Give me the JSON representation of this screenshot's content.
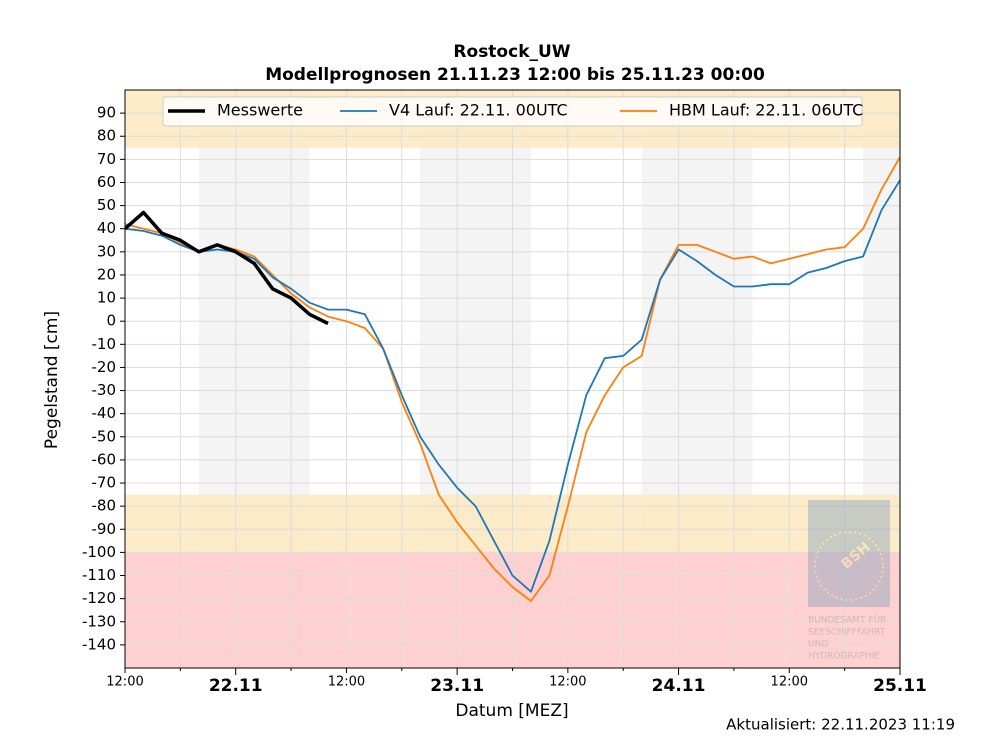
{
  "chart_data": {
    "type": "line",
    "title": "Rostock_UW",
    "subtitle": "Modellprognosen 21.11.23 12:00 bis 25.11.23 00:00",
    "x_label": "Datum [MEZ]",
    "y_label": "Pegelstand [cm]",
    "updated": "Aktualisiert: 22.11.2023 11:19",
    "legend": "upper center",
    "grid": true,
    "x": [
      "21.11 12:00",
      "21.11 14:00",
      "21.11 16:00",
      "21.11 18:00",
      "21.11 20:00",
      "21.11 22:00",
      "22.11 00:00",
      "22.11 02:00",
      "22.11 04:00",
      "22.11 06:00",
      "22.11 08:00",
      "22.11 10:00",
      "22.11 12:00",
      "22.11 14:00",
      "22.11 16:00",
      "22.11 18:00",
      "22.11 20:00",
      "22.11 22:00",
      "23.11 00:00",
      "23.11 02:00",
      "23.11 04:00",
      "23.11 06:00",
      "23.11 08:00",
      "23.11 10:00",
      "23.11 12:00",
      "23.11 14:00",
      "23.11 16:00",
      "23.11 18:00",
      "23.11 20:00",
      "23.11 22:00",
      "24.11 00:00",
      "24.11 02:00",
      "24.11 04:00",
      "24.11 06:00",
      "24.11 08:00",
      "24.11 10:00",
      "24.11 12:00",
      "24.11 14:00",
      "24.11 16:00",
      "24.11 18:00",
      "24.11 20:00",
      "24.11 22:00",
      "25.11 00:00"
    ],
    "series": [
      {
        "name": "Messwerte",
        "color": "#000000",
        "width": 3.5,
        "values": [
          40,
          47,
          38,
          35,
          30,
          33,
          30,
          25,
          14,
          10,
          3,
          -1,
          null,
          null,
          null,
          null,
          null,
          null,
          null,
          null,
          null,
          null,
          null,
          null,
          null,
          null,
          null,
          null,
          null,
          null,
          null,
          null,
          null,
          null,
          null,
          null,
          null,
          null,
          null,
          null,
          null,
          null,
          null
        ]
      },
      {
        "name": "V4 Lauf: 22.11. 00UTC",
        "color": "#1f77b4",
        "width": 1.8,
        "values": [
          40,
          39,
          37,
          33,
          30,
          31,
          30,
          27,
          19,
          14,
          8,
          5,
          5,
          3,
          -12,
          -32,
          -50,
          -62,
          -72,
          -80,
          -95,
          -110,
          -117,
          -95,
          -62,
          -32,
          -16,
          -15,
          -8,
          18,
          31,
          26,
          20,
          15,
          15,
          16,
          16,
          21,
          23,
          26,
          28,
          48,
          61
        ]
      },
      {
        "name": "HBM Lauf: 22.11. 06UTC",
        "color": "#ff7f0e",
        "width": 1.8,
        "values": [
          42,
          40,
          38,
          34,
          30,
          33,
          31,
          28,
          20,
          12,
          6,
          2,
          0,
          -3,
          -12,
          -35,
          -53,
          -75,
          -87,
          -97,
          -107,
          -115,
          -121,
          -110,
          -80,
          -48,
          -32,
          -20,
          -15,
          18,
          33,
          33,
          30,
          27,
          28,
          25,
          27,
          29,
          31,
          32,
          40,
          57,
          71
        ]
      }
    ],
    "xlim": [
      "21.11 12:00",
      "25.11 00:00"
    ],
    "xticks": [
      {
        "value": "21.11 12:00",
        "label": "12:00"
      },
      {
        "value": "22.11 00:00",
        "label": "22.11"
      },
      {
        "value": "22.11 12:00",
        "label": "12:00"
      },
      {
        "value": "23.11 00:00",
        "label": "23.11"
      },
      {
        "value": "23.11 12:00",
        "label": "12:00"
      },
      {
        "value": "24.11 00:00",
        "label": "24.11"
      },
      {
        "value": "24.11 12:00",
        "label": "12:00"
      },
      {
        "value": "25.11 00:00",
        "label": "25.11"
      }
    ],
    "minor_xticks": [
      "21.11 18:00",
      "22.11 06:00",
      "22.11 18:00",
      "23.11 06:00",
      "23.11 18:00",
      "24.11 06:00",
      "24.11 18:00"
    ],
    "ylim": [
      -150,
      100
    ],
    "yticks": [
      -140,
      -130,
      -120,
      -110,
      -100,
      -90,
      -80,
      -70,
      -60,
      -50,
      -40,
      -30,
      -20,
      -10,
      0,
      10,
      20,
      30,
      40,
      50,
      60,
      70,
      80,
      90
    ],
    "bands": [
      {
        "from": 75,
        "to": 100,
        "color": "#fde9c0"
      },
      {
        "from": -100,
        "to": -75,
        "color": "#fde9c0"
      },
      {
        "from": -150,
        "to": -100,
        "color": "#ffc9c9"
      }
    ],
    "shaded_periods": [
      [
        "21.11 20:00",
        "22.11 08:00"
      ],
      [
        "22.11 20:00",
        "23.11 08:00"
      ],
      [
        "23.11 20:00",
        "24.11 08:00"
      ],
      [
        "24.11 20:00",
        "25.11 08:00"
      ]
    ]
  },
  "logo": {
    "mark": "BSH",
    "lines": [
      "BUNDESAMT FÜR",
      "SEESCHIFFFAHRT",
      "UND",
      "HYDROGRAPHIE"
    ]
  }
}
